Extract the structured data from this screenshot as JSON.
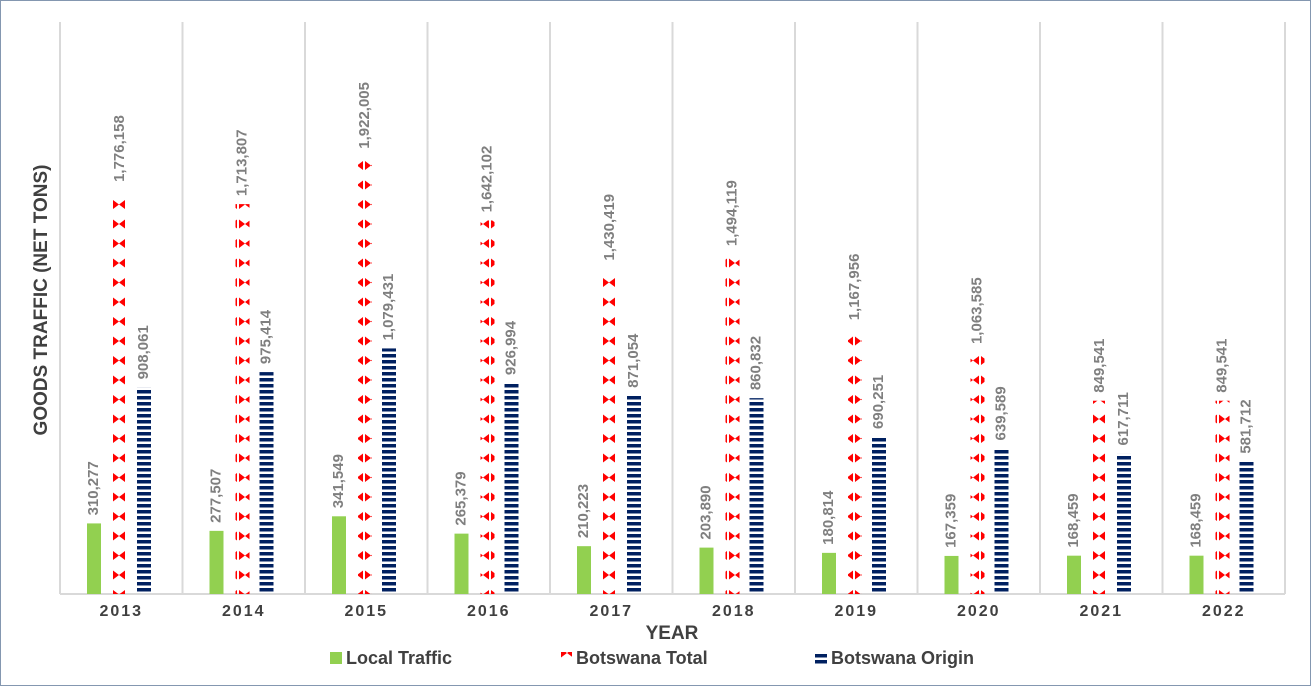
{
  "chart_data": {
    "type": "bar",
    "x_label": "YEAR",
    "y_label": "GOODS TRAFFIC (NET TONS)",
    "categories": [
      "2013",
      "2014",
      "2015",
      "2016",
      "2017",
      "2018",
      "2019",
      "2020",
      "2021",
      "2022"
    ],
    "ylim": [
      0,
      2000000
    ],
    "series": [
      {
        "name": "Local Traffic",
        "color": "#92d050",
        "pattern": "solid",
        "values": [
          310277,
          277507,
          341549,
          265379,
          210223,
          203890,
          180814,
          167359,
          168459,
          168459
        ],
        "value_labels": [
          "310,277",
          "277,507",
          "341,549",
          "265,379",
          "210,223",
          "203,890",
          "180,814",
          "167,359",
          "168,459",
          "168,459"
        ]
      },
      {
        "name": "Botswana Total",
        "color": "#ff0000",
        "pattern": "dots",
        "values": [
          1776158,
          1713807,
          1922005,
          1642102,
          1430419,
          1494119,
          1167956,
          1063585,
          849541,
          849541
        ],
        "value_labels": [
          "1,776,158",
          "1,713,807",
          "1,922,005",
          "1,642,102",
          "1,430,419",
          "1,494,119",
          "1,167,956",
          "1,063,585",
          "849,541",
          "849,541"
        ]
      },
      {
        "name": "Botswana Origin",
        "color": "#002060",
        "pattern": "dashes",
        "values": [
          908061,
          975414,
          1079431,
          926994,
          871054,
          860832,
          690251,
          639589,
          617711,
          581712
        ],
        "value_labels": [
          "908,061",
          "975,414",
          "1,079,431",
          "926,994",
          "871,054",
          "860,832",
          "690,251",
          "639,589",
          "617,711",
          "581,712"
        ]
      }
    ],
    "legend": "bottom"
  }
}
